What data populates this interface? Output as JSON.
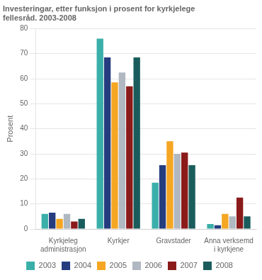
{
  "chart_data": {
    "type": "bar",
    "title": "Investeringar, etter funksjon i prosent for kyrkjelege\nfellesråd. 2003-2008",
    "ylabel": "Prosent",
    "categories": [
      "Kyrkjeleg\nadministrasjon",
      "Kyrkjer",
      "Gravstader",
      "Anna verksemd\ni kyrkjene"
    ],
    "series": [
      {
        "name": "2003",
        "color": "#3aafa9",
        "values": [
          6.0,
          76.0,
          18.5,
          2.0
        ]
      },
      {
        "name": "2004",
        "color": "#253d7f",
        "values": [
          6.5,
          68.5,
          25.5,
          1.5
        ]
      },
      {
        "name": "2005",
        "color": "#f5a623",
        "values": [
          4.0,
          58.5,
          35.0,
          6.0
        ]
      },
      {
        "name": "2006",
        "color": "#b0b8c1",
        "values": [
          6.0,
          62.5,
          30.0,
          5.0
        ]
      },
      {
        "name": "2007",
        "color": "#8b1a1a",
        "values": [
          3.0,
          57.0,
          30.5,
          12.5
        ]
      },
      {
        "name": "2008",
        "color": "#1a5c5c",
        "values": [
          4.0,
          68.5,
          25.5,
          5.0
        ]
      }
    ],
    "ylim": [
      0,
      80
    ],
    "yticks": [
      0,
      10,
      20,
      30,
      40,
      50,
      60,
      70,
      80
    ],
    "grid": true,
    "legend": "bottom"
  }
}
